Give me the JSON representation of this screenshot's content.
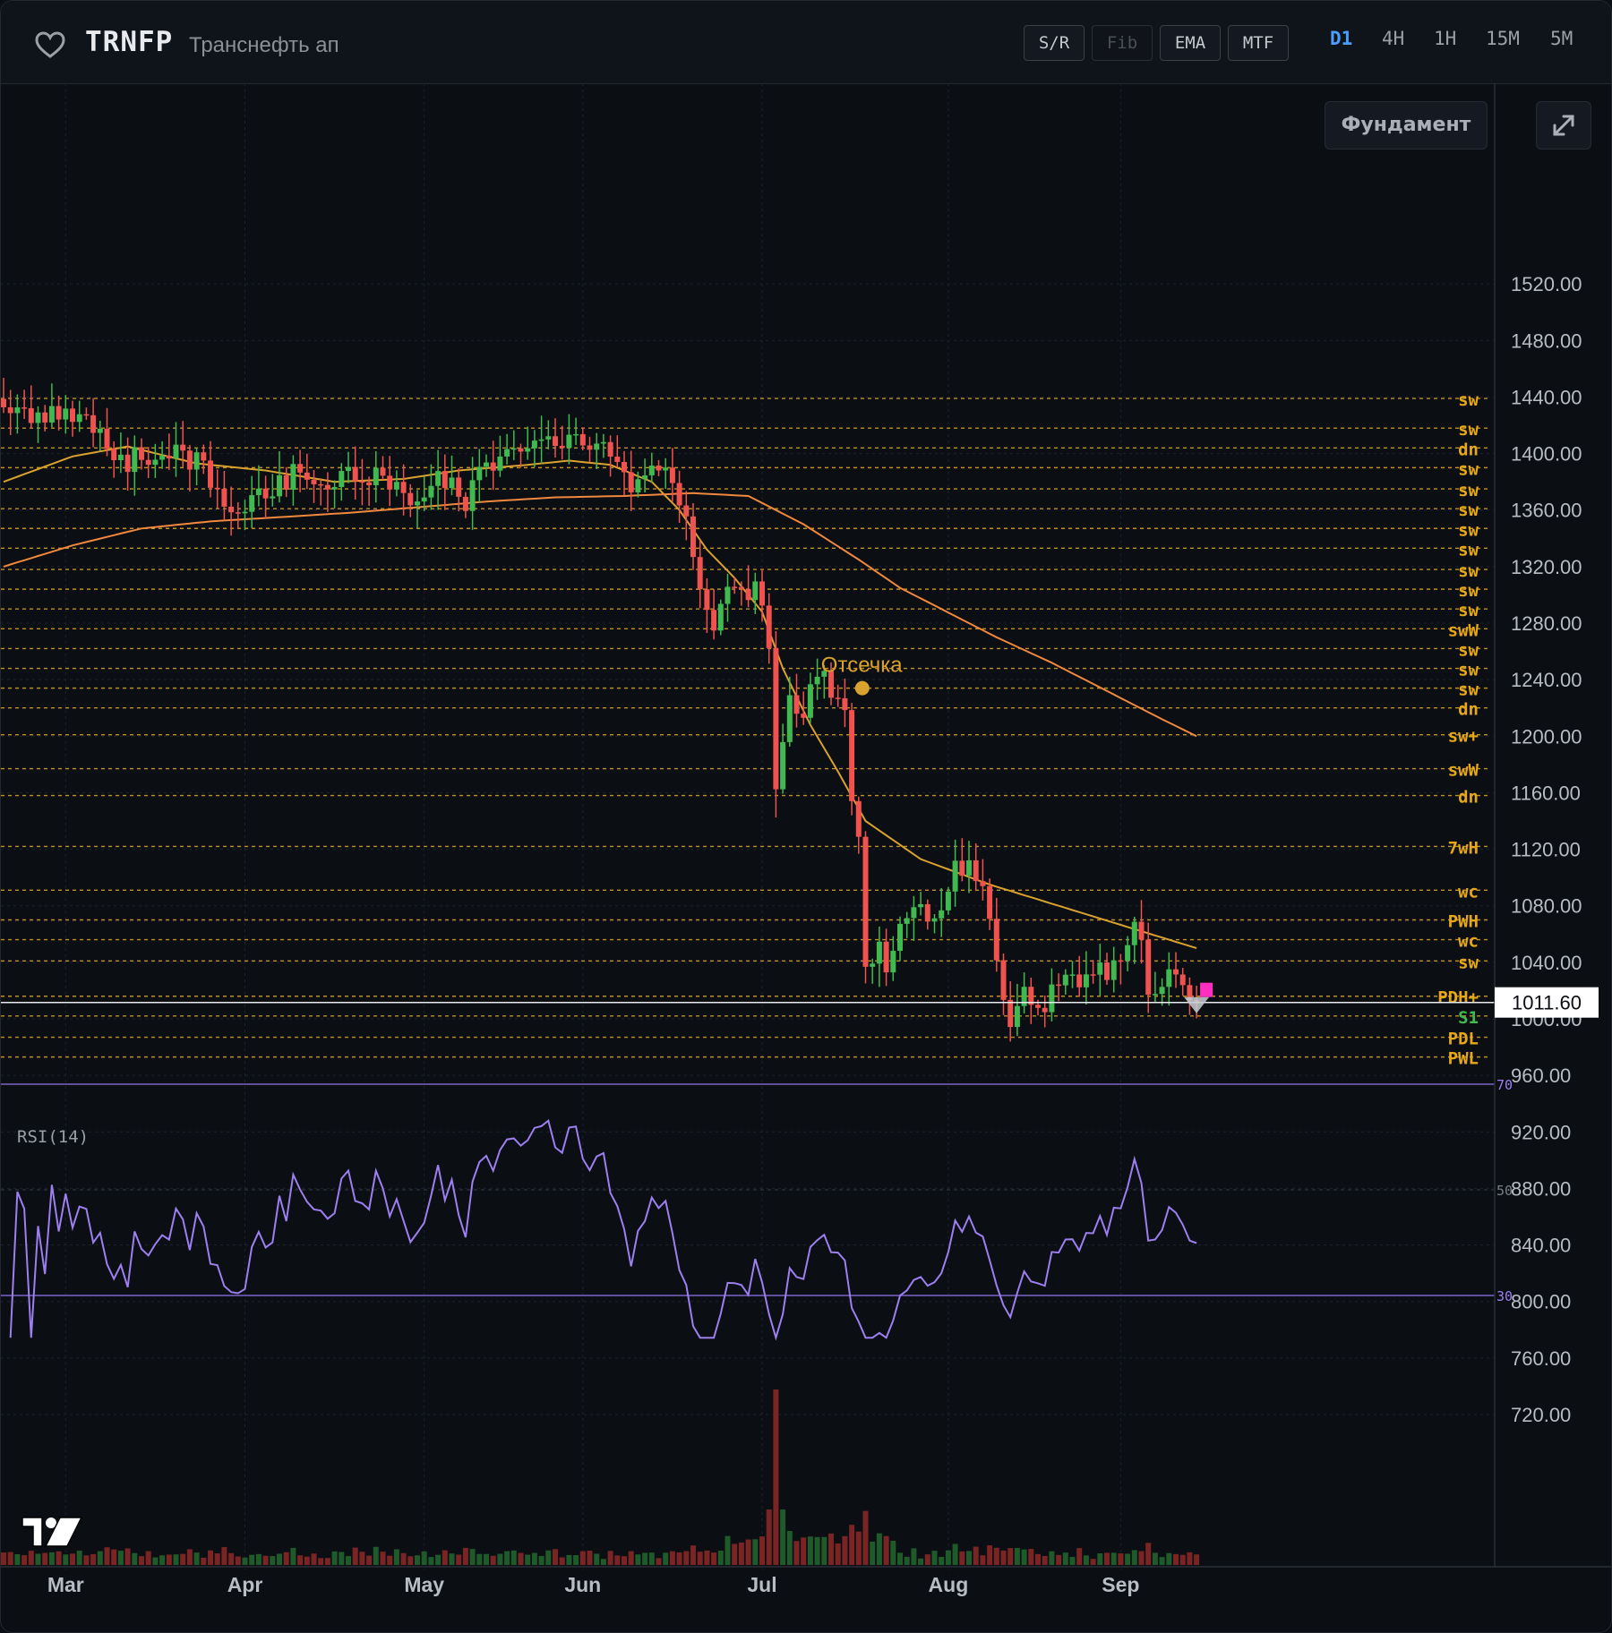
{
  "header": {
    "ticker": "TRNFP",
    "company": "Транснефть ап",
    "tools": [
      {
        "label": "S/R",
        "enabled": true
      },
      {
        "label": "Fib",
        "enabled": false
      },
      {
        "label": "EMA",
        "enabled": true
      },
      {
        "label": "MTF",
        "enabled": true
      }
    ],
    "timeframes": [
      {
        "label": "D1",
        "active": true
      },
      {
        "label": "4H",
        "active": false
      },
      {
        "label": "1H",
        "active": false
      },
      {
        "label": "15M",
        "active": false
      },
      {
        "label": "5M",
        "active": false
      }
    ]
  },
  "controls": {
    "fundament_label": "Фундамент",
    "expand_icon": "expand-icon"
  },
  "colors": {
    "up": "#3fb950",
    "down": "#f0534f",
    "level": "#e6a817",
    "ema_fast": "#d9a22e",
    "ema_slow": "#f0883e",
    "rsi": "#9d7ff0",
    "rsi_bands": "#7a63c9",
    "vol_up": "#1f5a2a",
    "vol_down": "#7a2424"
  },
  "chart_data": {
    "type": "candlestick",
    "price_range": [
      680,
      1520
    ],
    "y_ticks": [
      1520,
      1480,
      1440,
      1400,
      1360,
      1320,
      1280,
      1240,
      1200,
      1160,
      1120,
      1080,
      1040,
      1000,
      960,
      920,
      880,
      840,
      800,
      760,
      720
    ],
    "y_tick_labels": [
      "1520.00",
      "1480.00",
      "1440.00",
      "1400.00",
      "1360.00",
      "1320.00",
      "1280.00",
      "1240.00",
      "1200.00",
      "1160.00",
      "1120.00",
      "1080.00",
      "1040.00",
      "1000.00",
      "960.00",
      "920.00",
      "880.00",
      "840.00",
      "800.00",
      "760.00",
      "720.00"
    ],
    "months": [
      "Mar",
      "Apr",
      "May",
      "Jun",
      "Jul",
      "Aug",
      "Sep"
    ],
    "month_index": [
      9,
      35,
      61,
      84,
      110,
      137,
      162
    ],
    "last_price": 1011.6,
    "last_price_label": "1011.60",
    "levels": [
      {
        "price": 1439,
        "label": "sw"
      },
      {
        "price": 1418,
        "label": "sw"
      },
      {
        "price": 1404,
        "label": "dn"
      },
      {
        "price": 1390,
        "label": "sw"
      },
      {
        "price": 1375,
        "label": "sw"
      },
      {
        "price": 1361,
        "label": "sw"
      },
      {
        "price": 1347,
        "label": "sw"
      },
      {
        "price": 1333,
        "label": "sw"
      },
      {
        "price": 1318,
        "label": "sw"
      },
      {
        "price": 1304,
        "label": "sw"
      },
      {
        "price": 1290,
        "label": "sw"
      },
      {
        "price": 1276,
        "label": "swW"
      },
      {
        "price": 1262,
        "label": "sw"
      },
      {
        "price": 1248,
        "label": "sw"
      },
      {
        "price": 1234,
        "label": "sw"
      },
      {
        "price": 1220,
        "label": "dn"
      },
      {
        "price": 1201,
        "label": "sw+"
      },
      {
        "price": 1177,
        "label": "swW"
      },
      {
        "price": 1158,
        "label": "dn"
      },
      {
        "price": 1122,
        "label": "7wH"
      },
      {
        "price": 1091,
        "label": "wc"
      },
      {
        "price": 1070,
        "label": "PWH"
      },
      {
        "price": 1056,
        "label": "wc"
      },
      {
        "price": 1041,
        "label": "sw"
      },
      {
        "price": 1016,
        "label": "PDH+"
      },
      {
        "price": 1002,
        "label": "S1"
      },
      {
        "price": 987,
        "label": "PDL"
      },
      {
        "price": 973,
        "label": "PWL"
      }
    ],
    "annotation": {
      "label": "Отсечка",
      "index": 124,
      "price": 1234
    },
    "rsi": {
      "label": "RSI(14)",
      "overbought": 70,
      "mid": 50,
      "oversold": 30,
      "band_labels": [
        "70",
        "50",
        "30"
      ]
    },
    "seed": 20240915,
    "anchors": [
      [
        0,
        1430
      ],
      [
        5,
        1425
      ],
      [
        10,
        1430
      ],
      [
        14,
        1410
      ],
      [
        18,
        1395
      ],
      [
        24,
        1400
      ],
      [
        28,
        1395
      ],
      [
        32,
        1368
      ],
      [
        34,
        1350
      ],
      [
        38,
        1375
      ],
      [
        42,
        1385
      ],
      [
        47,
        1380
      ],
      [
        52,
        1385
      ],
      [
        56,
        1378
      ],
      [
        59,
        1370
      ],
      [
        63,
        1385
      ],
      [
        67,
        1368
      ],
      [
        70,
        1390
      ],
      [
        74,
        1400
      ],
      [
        77,
        1410
      ],
      [
        80,
        1405
      ],
      [
        83,
        1415
      ],
      [
        85,
        1398
      ],
      [
        88,
        1400
      ],
      [
        91,
        1375
      ],
      [
        95,
        1390
      ],
      [
        97,
        1378
      ],
      [
        99,
        1350
      ],
      [
        101,
        1300
      ],
      [
        103,
        1280
      ],
      [
        105,
        1300
      ],
      [
        107,
        1310
      ],
      [
        108,
        1300
      ],
      [
        109,
        1305
      ],
      [
        110,
        1290
      ],
      [
        111,
        1255
      ],
      [
        112,
        1155
      ],
      [
        113,
        1190
      ],
      [
        114,
        1230
      ],
      [
        116,
        1215
      ],
      [
        118,
        1245
      ],
      [
        120,
        1230
      ],
      [
        122,
        1215
      ],
      [
        123,
        1160
      ],
      [
        124,
        1120
      ],
      [
        125,
        1030
      ],
      [
        127,
        1050
      ],
      [
        128,
        1035
      ],
      [
        130,
        1075
      ],
      [
        132,
        1080
      ],
      [
        134,
        1070
      ],
      [
        136,
        1080
      ],
      [
        138,
        1115
      ],
      [
        140,
        1105
      ],
      [
        142,
        1095
      ],
      [
        143,
        1075
      ],
      [
        144,
        1040
      ],
      [
        146,
        1000
      ],
      [
        148,
        1020
      ],
      [
        150,
        1005
      ],
      [
        152,
        1020
      ],
      [
        154,
        1030
      ],
      [
        156,
        1025
      ],
      [
        158,
        1040
      ],
      [
        160,
        1030
      ],
      [
        162,
        1045
      ],
      [
        164,
        1060
      ],
      [
        165,
        1050
      ],
      [
        166,
        1022
      ],
      [
        168,
        1020
      ],
      [
        169,
        1030
      ],
      [
        171,
        1020
      ],
      [
        172,
        1010
      ],
      [
        173,
        1011.6
      ]
    ],
    "ema_fast_anchors": [
      [
        0,
        1380
      ],
      [
        10,
        1398
      ],
      [
        18,
        1405
      ],
      [
        28,
        1393
      ],
      [
        38,
        1388
      ],
      [
        48,
        1380
      ],
      [
        58,
        1382
      ],
      [
        66,
        1388
      ],
      [
        76,
        1392
      ],
      [
        82,
        1395
      ],
      [
        88,
        1392
      ],
      [
        94,
        1380
      ],
      [
        98,
        1360
      ],
      [
        102,
        1332
      ],
      [
        106,
        1312
      ],
      [
        110,
        1288
      ],
      [
        113,
        1248
      ],
      [
        117,
        1208
      ],
      [
        121,
        1175
      ],
      [
        125,
        1140
      ],
      [
        133,
        1113
      ],
      [
        143,
        1095
      ],
      [
        153,
        1080
      ],
      [
        163,
        1065
      ],
      [
        173,
        1050
      ]
    ],
    "ema_slow_anchors": [
      [
        0,
        1320
      ],
      [
        10,
        1335
      ],
      [
        20,
        1347
      ],
      [
        30,
        1352
      ],
      [
        40,
        1355
      ],
      [
        50,
        1358
      ],
      [
        60,
        1362
      ],
      [
        70,
        1366
      ],
      [
        80,
        1369
      ],
      [
        90,
        1370
      ],
      [
        100,
        1372
      ],
      [
        108,
        1370
      ],
      [
        116,
        1350
      ],
      [
        124,
        1325
      ],
      [
        130,
        1305
      ],
      [
        136,
        1290
      ],
      [
        144,
        1270
      ],
      [
        152,
        1252
      ],
      [
        160,
        1232
      ],
      [
        168,
        1212
      ],
      [
        173,
        1200
      ]
    ],
    "volume_spike_index": 112
  }
}
